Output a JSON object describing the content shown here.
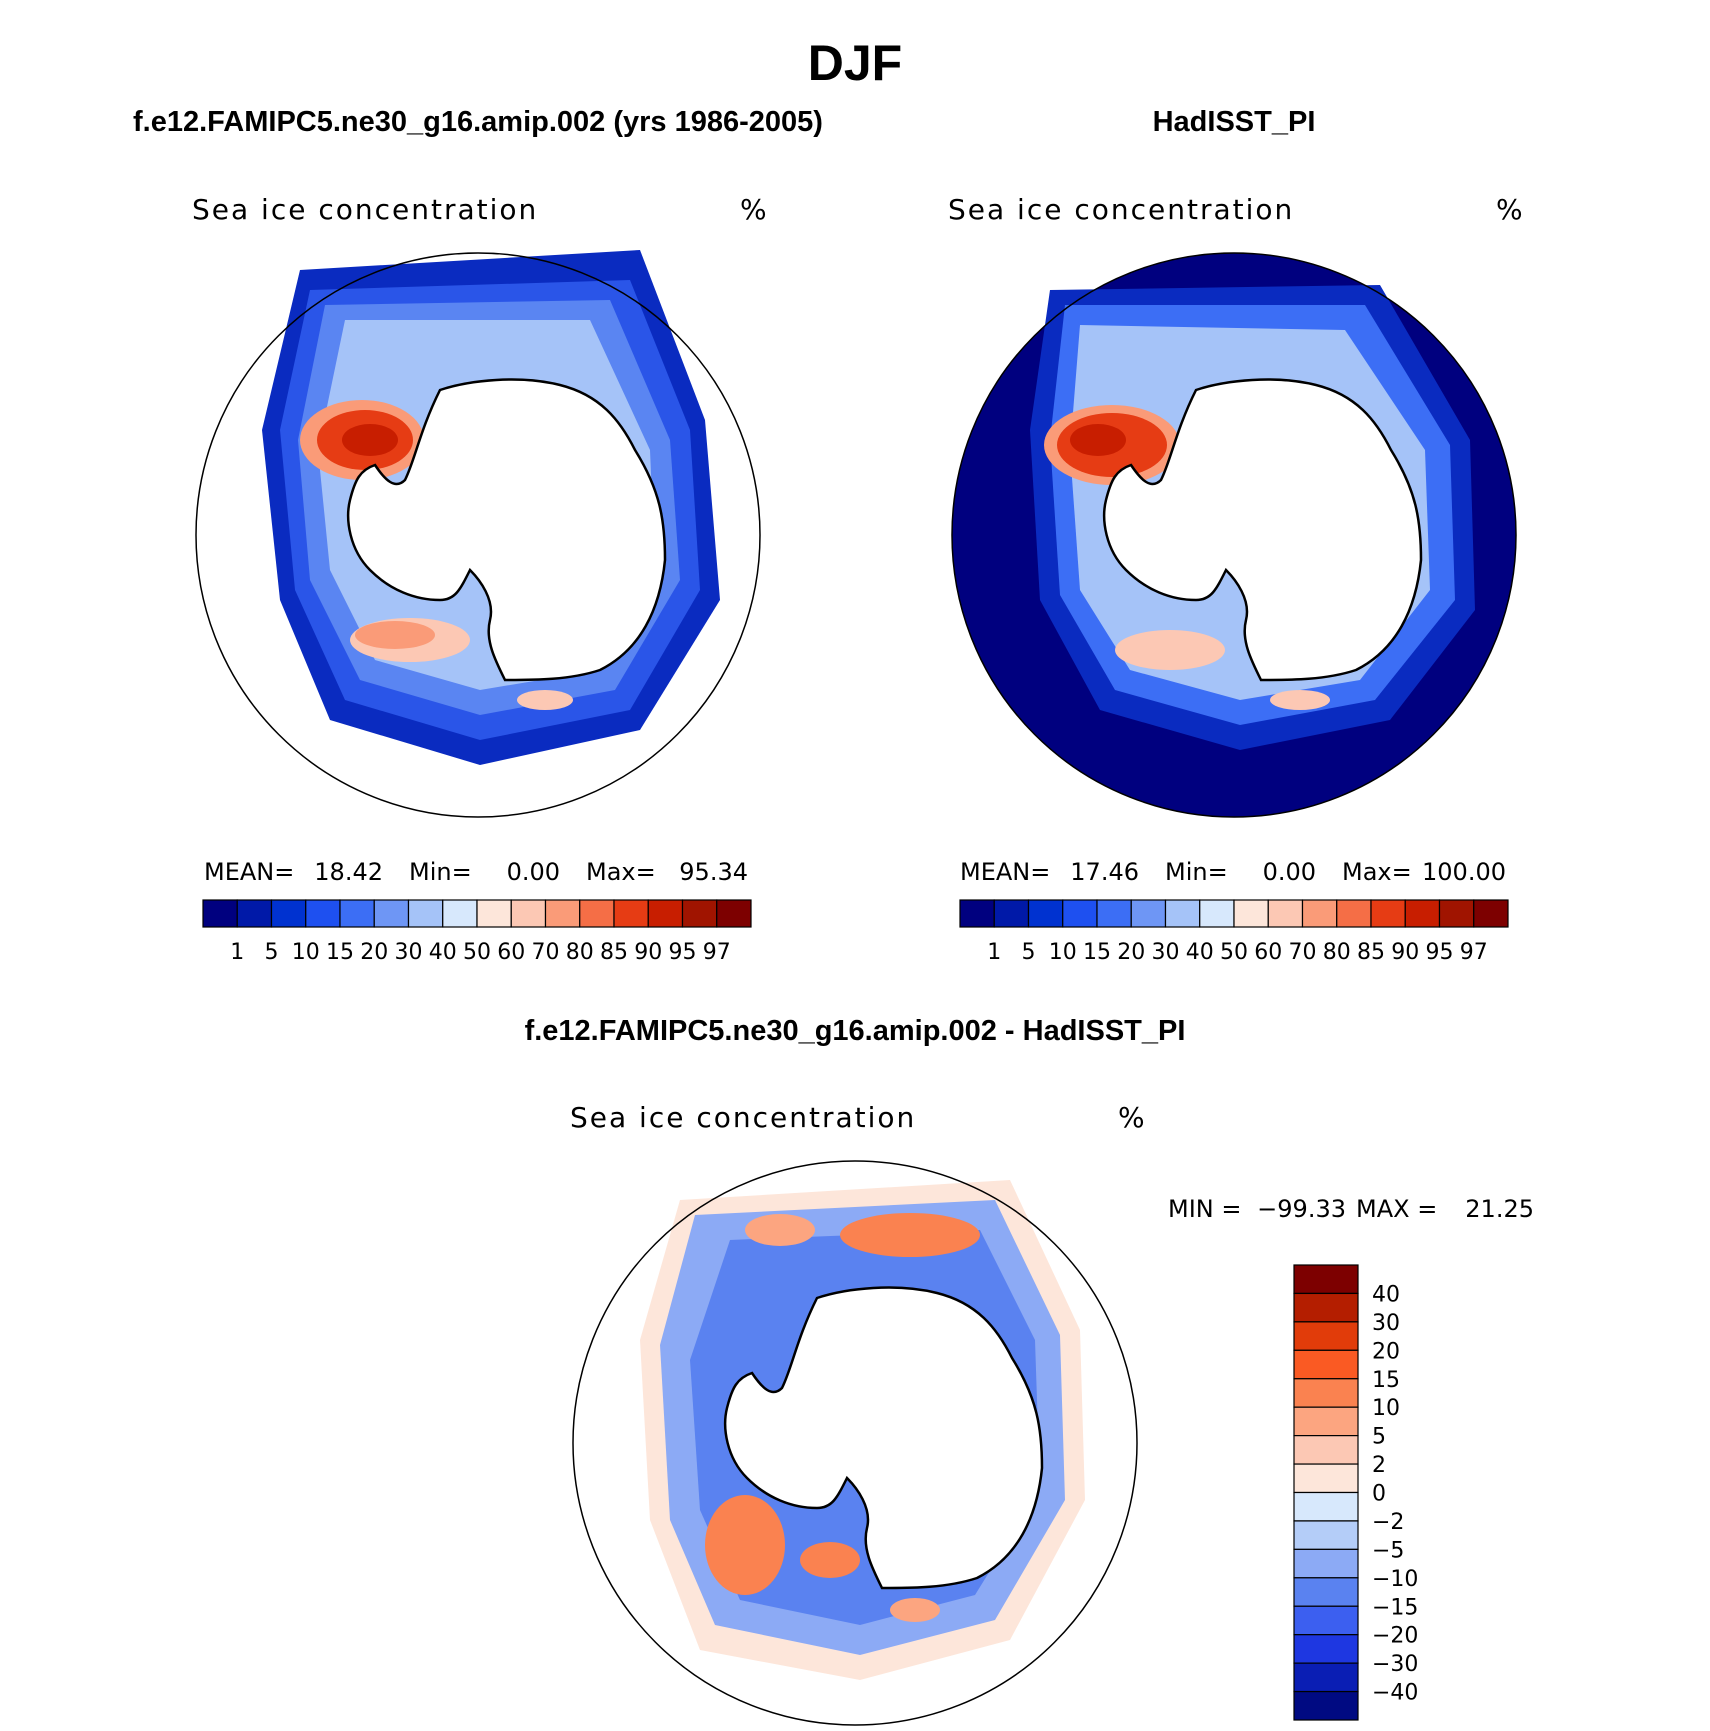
{
  "title": "DJF",
  "panels": [
    {
      "id": "model",
      "header": "f.e12.FAMIPC5.ne30_g16.amip.002 (yrs 1986-2005)",
      "variable": "Sea ice concentration",
      "units": "%",
      "stats": {
        "mean_label": "MEAN=",
        "mean": "18.42",
        "min_label": "Min=",
        "min": "0.00",
        "max_label": "Max=",
        "max": "95.34"
      },
      "colorbar_labels": [
        "1",
        "5",
        "10",
        "15",
        "20",
        "30",
        "40",
        "50",
        "60",
        "70",
        "80",
        "85",
        "90",
        "95",
        "97"
      ]
    },
    {
      "id": "obs",
      "header": "HadISST_PI",
      "variable": "Sea ice concentration",
      "units": "%",
      "stats": {
        "mean_label": "MEAN=",
        "mean": "17.46",
        "min_label": "Min=",
        "min": "0.00",
        "max_label": "Max=",
        "max": "100.00"
      },
      "colorbar_labels": [
        "1",
        "5",
        "10",
        "15",
        "20",
        "30",
        "40",
        "50",
        "60",
        "70",
        "80",
        "85",
        "90",
        "95",
        "97"
      ]
    },
    {
      "id": "diff",
      "header": "f.e12.FAMIPC5.ne30_g16.amip.002 - HadISST_PI",
      "variable": "Sea ice concentration",
      "units": "%",
      "stats": {
        "min_label": "MIN =",
        "min": "−99.33",
        "max_label": "MAX =",
        "max": "21.25"
      },
      "colorbar_labels": [
        "40",
        "30",
        "20",
        "15",
        "10",
        "5",
        "2",
        "0",
        "−2",
        "−5",
        "−10",
        "−15",
        "−20",
        "−30",
        "−40"
      ]
    }
  ],
  "colors": {
    "ice_scale": [
      "#00007f",
      "#0019a8",
      "#0032d0",
      "#1e50f0",
      "#3c6ef5",
      "#6e96f5",
      "#a5c3f8",
      "#d7e8fc",
      "#fde6da",
      "#fcc8b4",
      "#fa9b78",
      "#f56e46",
      "#e63c14",
      "#c81e00",
      "#a01400",
      "#7d0000"
    ],
    "diff_scale": [
      "#7d0000",
      "#b41e00",
      "#e13c0a",
      "#fa5a23",
      "#fa8250",
      "#fca580",
      "#fcc8b4",
      "#fde6da",
      "#d7e8fc",
      "#b4cdf8",
      "#8caaf5",
      "#5a82f0",
      "#3c5ff0",
      "#1e37e1",
      "#0a1eb4",
      "#000a82"
    ]
  }
}
